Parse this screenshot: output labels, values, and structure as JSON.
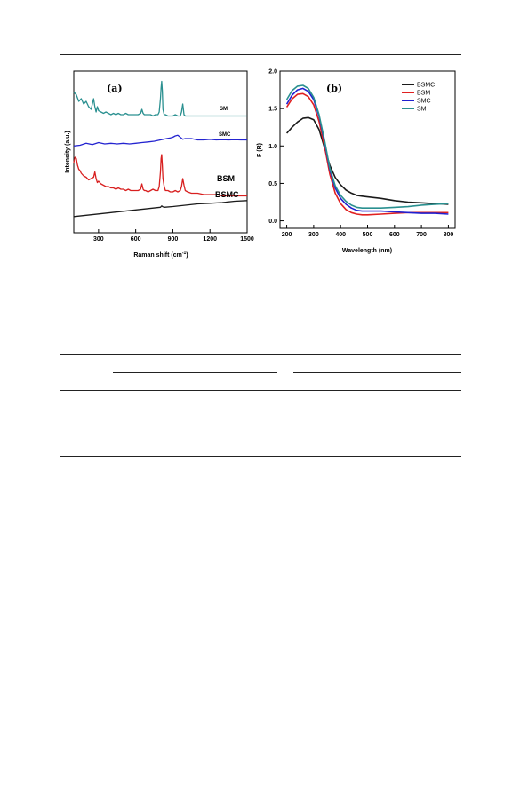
{
  "chart_data": [
    {
      "panel": "(a)",
      "type": "line",
      "xlabel": "Raman shift (cm-1)",
      "ylabel": "Intensity (a.u.)",
      "xlim": [
        100,
        1500
      ],
      "xticks": [
        300,
        600,
        900,
        1200,
        1500
      ],
      "yticks": "none",
      "colors": {
        "SM": "#2a9090",
        "SMC": "#2424d0",
        "BSM": "#d82020",
        "BSMC": "#1a1a1a"
      },
      "series": [
        {
          "name": "SM",
          "label_size": "small",
          "x": [
            100,
            120,
            140,
            160,
            180,
            200,
            220,
            240,
            260,
            270,
            280,
            290,
            300,
            320,
            340,
            360,
            380,
            400,
            420,
            440,
            460,
            480,
            500,
            520,
            540,
            560,
            580,
            600,
            620,
            640,
            650,
            660,
            670,
            680,
            700,
            720,
            740,
            760,
            780,
            790,
            800,
            805,
            810,
            815,
            820,
            830,
            840,
            860,
            880,
            900,
            920,
            940,
            960,
            970,
            980,
            990,
            1000,
            1020,
            1050,
            1100,
            1150,
            1200,
            1250,
            1300,
            1350,
            1400,
            1450,
            1500
          ],
          "y": [
            0.95,
            0.93,
            0.88,
            0.9,
            0.86,
            0.88,
            0.84,
            0.82,
            0.9,
            0.84,
            0.8,
            0.84,
            0.81,
            0.8,
            0.79,
            0.8,
            0.79,
            0.78,
            0.79,
            0.78,
            0.79,
            0.78,
            0.78,
            0.79,
            0.78,
            0.78,
            0.78,
            0.78,
            0.78,
            0.79,
            0.82,
            0.79,
            0.78,
            0.78,
            0.78,
            0.78,
            0.77,
            0.78,
            0.78,
            0.8,
            0.9,
            0.98,
            1.03,
            0.96,
            0.82,
            0.78,
            0.78,
            0.77,
            0.77,
            0.77,
            0.78,
            0.77,
            0.77,
            0.8,
            0.86,
            0.78,
            0.77,
            0.77,
            0.77,
            0.77,
            0.77,
            0.77,
            0.77,
            0.77,
            0.77,
            0.77,
            0.77,
            0.77
          ]
        },
        {
          "name": "SMC",
          "label_size": "small",
          "x": [
            100,
            150,
            200,
            250,
            300,
            350,
            400,
            450,
            500,
            550,
            600,
            650,
            700,
            750,
            800,
            850,
            880,
            900,
            920,
            940,
            960,
            980,
            1000,
            1050,
            1100,
            1150,
            1200,
            1250,
            1300,
            1350,
            1400,
            1450,
            1500
          ],
          "y": [
            0.545,
            0.55,
            0.565,
            0.555,
            0.57,
            0.56,
            0.565,
            0.56,
            0.565,
            0.56,
            0.565,
            0.57,
            0.575,
            0.58,
            0.59,
            0.6,
            0.605,
            0.61,
            0.62,
            0.625,
            0.61,
            0.595,
            0.6,
            0.6,
            0.59,
            0.59,
            0.595,
            0.59,
            0.592,
            0.59,
            0.592,
            0.59,
            0.59
          ]
        },
        {
          "name": "BSM",
          "label_size": "large",
          "x": [
            100,
            110,
            120,
            130,
            140,
            150,
            160,
            180,
            200,
            220,
            240,
            260,
            270,
            280,
            290,
            300,
            320,
            340,
            360,
            380,
            400,
            420,
            440,
            460,
            480,
            500,
            520,
            540,
            560,
            580,
            600,
            620,
            640,
            650,
            660,
            670,
            680,
            700,
            720,
            740,
            760,
            780,
            790,
            800,
            805,
            810,
            815,
            820,
            830,
            840,
            860,
            880,
            900,
            920,
            940,
            960,
            970,
            980,
            990,
            1000,
            1020,
            1050,
            1100,
            1150,
            1200,
            1250,
            1300,
            1350,
            1400,
            1450,
            1500
          ],
          "y": [
            0.42,
            0.46,
            0.45,
            0.4,
            0.37,
            0.36,
            0.34,
            0.32,
            0.31,
            0.29,
            0.3,
            0.31,
            0.35,
            0.3,
            0.27,
            0.28,
            0.26,
            0.25,
            0.24,
            0.24,
            0.23,
            0.23,
            0.22,
            0.23,
            0.22,
            0.22,
            0.21,
            0.22,
            0.21,
            0.21,
            0.21,
            0.21,
            0.22,
            0.26,
            0.22,
            0.21,
            0.21,
            0.2,
            0.21,
            0.22,
            0.21,
            0.21,
            0.24,
            0.35,
            0.45,
            0.48,
            0.4,
            0.3,
            0.24,
            0.21,
            0.21,
            0.2,
            0.2,
            0.21,
            0.2,
            0.21,
            0.24,
            0.3,
            0.25,
            0.21,
            0.2,
            0.19,
            0.19,
            0.18,
            0.18,
            0.18,
            0.17,
            0.17,
            0.17,
            0.17,
            0.17
          ]
        },
        {
          "name": "BSMC",
          "label_size": "large",
          "x": [
            100,
            200,
            300,
            400,
            500,
            600,
            700,
            800,
            810,
            820,
            830,
            900,
            1000,
            1100,
            1200,
            1300,
            1400,
            1500
          ],
          "y": [
            0.015,
            0.025,
            0.035,
            0.045,
            0.055,
            0.065,
            0.075,
            0.085,
            0.095,
            0.088,
            0.085,
            0.09,
            0.1,
            0.11,
            0.115,
            0.12,
            0.13,
            0.135
          ]
        }
      ]
    },
    {
      "panel": "(b)",
      "type": "line",
      "xlabel": "Wavelength (nm)",
      "ylabel": "F (R)",
      "xlim": [
        175,
        825
      ],
      "ylim": [
        -0.1,
        2.0
      ],
      "xticks": [
        200,
        300,
        400,
        500,
        600,
        700,
        800
      ],
      "yticks": [
        0.0,
        0.5,
        1.0,
        1.5,
        2.0
      ],
      "legend": "top-right",
      "series": [
        {
          "name": "BSMC",
          "color": "#1a1a1a",
          "x": [
            200,
            220,
            240,
            260,
            280,
            300,
            320,
            340,
            360,
            380,
            400,
            420,
            440,
            460,
            480,
            500,
            550,
            600,
            650,
            700,
            750,
            800
          ],
          "y": [
            1.17,
            1.25,
            1.32,
            1.37,
            1.38,
            1.35,
            1.22,
            0.98,
            0.74,
            0.58,
            0.48,
            0.41,
            0.37,
            0.34,
            0.33,
            0.32,
            0.3,
            0.27,
            0.25,
            0.24,
            0.23,
            0.22
          ]
        },
        {
          "name": "BSM",
          "color": "#e02020",
          "x": [
            200,
            220,
            240,
            260,
            280,
            300,
            320,
            340,
            360,
            380,
            400,
            420,
            440,
            460,
            480,
            500,
            550,
            600,
            650,
            700,
            750,
            800
          ],
          "y": [
            1.52,
            1.63,
            1.69,
            1.7,
            1.66,
            1.55,
            1.33,
            1.0,
            0.62,
            0.37,
            0.23,
            0.15,
            0.11,
            0.09,
            0.08,
            0.08,
            0.09,
            0.1,
            0.11,
            0.11,
            0.11,
            0.11
          ]
        },
        {
          "name": "SMC",
          "color": "#2020d0",
          "x": [
            200,
            220,
            240,
            260,
            280,
            300,
            320,
            340,
            360,
            380,
            400,
            420,
            440,
            460,
            480,
            500,
            550,
            600,
            650,
            700,
            750,
            800
          ],
          "y": [
            1.56,
            1.68,
            1.75,
            1.77,
            1.73,
            1.62,
            1.4,
            1.06,
            0.68,
            0.44,
            0.3,
            0.22,
            0.17,
            0.14,
            0.13,
            0.13,
            0.13,
            0.12,
            0.11,
            0.1,
            0.1,
            0.09
          ]
        },
        {
          "name": "SM",
          "color": "#2a9090",
          "x": [
            200,
            220,
            240,
            260,
            280,
            300,
            320,
            340,
            360,
            380,
            400,
            420,
            440,
            460,
            480,
            500,
            550,
            600,
            650,
            700,
            750,
            800
          ],
          "y": [
            1.62,
            1.74,
            1.8,
            1.81,
            1.77,
            1.65,
            1.42,
            1.08,
            0.7,
            0.47,
            0.34,
            0.26,
            0.21,
            0.18,
            0.17,
            0.17,
            0.17,
            0.18,
            0.19,
            0.21,
            0.22,
            0.23
          ]
        }
      ]
    }
  ]
}
